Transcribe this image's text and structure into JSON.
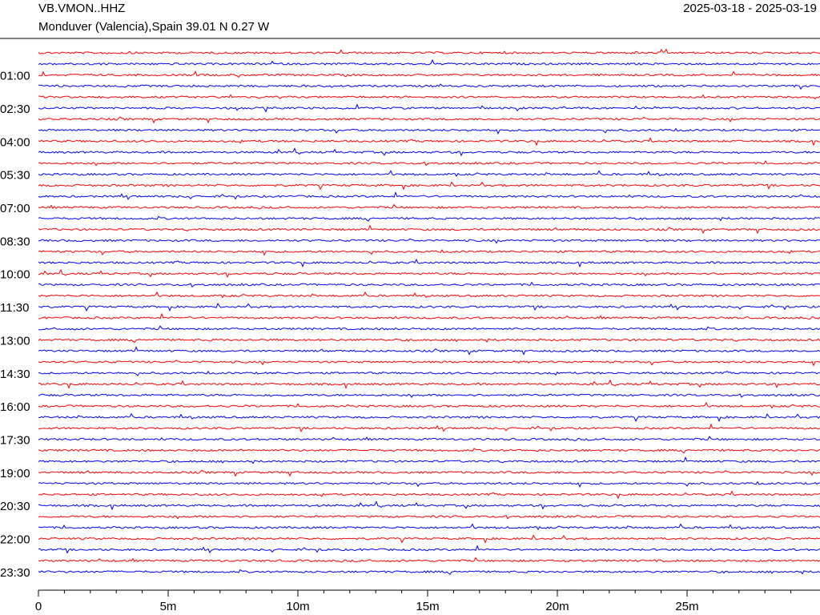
{
  "chart_data": {
    "type": "helicorder",
    "title": "VB.VMON..HHZ",
    "subtitle": "Monduver (Valencia),Spain  39.01 N 0.27 W",
    "date_range": "2025-03-18 - 2025-03-19",
    "xlim": [
      0,
      30
    ],
    "xticks": [
      {
        "value": 0,
        "label": "0"
      },
      {
        "value": 5,
        "label": "5m"
      },
      {
        "value": 10,
        "label": "10m"
      },
      {
        "value": 15,
        "label": "15m"
      },
      {
        "value": 20,
        "label": "20m"
      },
      {
        "value": 25,
        "label": "25m"
      }
    ],
    "ylim": [
      0,
      23.5
    ],
    "yticks": [
      {
        "value": 1,
        "label": "01:00"
      },
      {
        "value": 2.5,
        "label": "02:30"
      },
      {
        "value": 4,
        "label": "04:00"
      },
      {
        "value": 5.5,
        "label": "05:30"
      },
      {
        "value": 7,
        "label": "07:00"
      },
      {
        "value": 8.5,
        "label": "08:30"
      },
      {
        "value": 10,
        "label": "10:00"
      },
      {
        "value": 11.5,
        "label": "11:30"
      },
      {
        "value": 13,
        "label": "13:00"
      },
      {
        "value": 14.5,
        "label": "14:30"
      },
      {
        "value": 16,
        "label": "16:00"
      },
      {
        "value": 17.5,
        "label": "17:30"
      },
      {
        "value": 19,
        "label": "19:00"
      },
      {
        "value": 20.5,
        "label": "20:30"
      },
      {
        "value": 22,
        "label": "22:00"
      },
      {
        "value": 23.5,
        "label": "23:30"
      }
    ],
    "colors": [
      "#ff0000",
      "#0000ff"
    ]
  }
}
